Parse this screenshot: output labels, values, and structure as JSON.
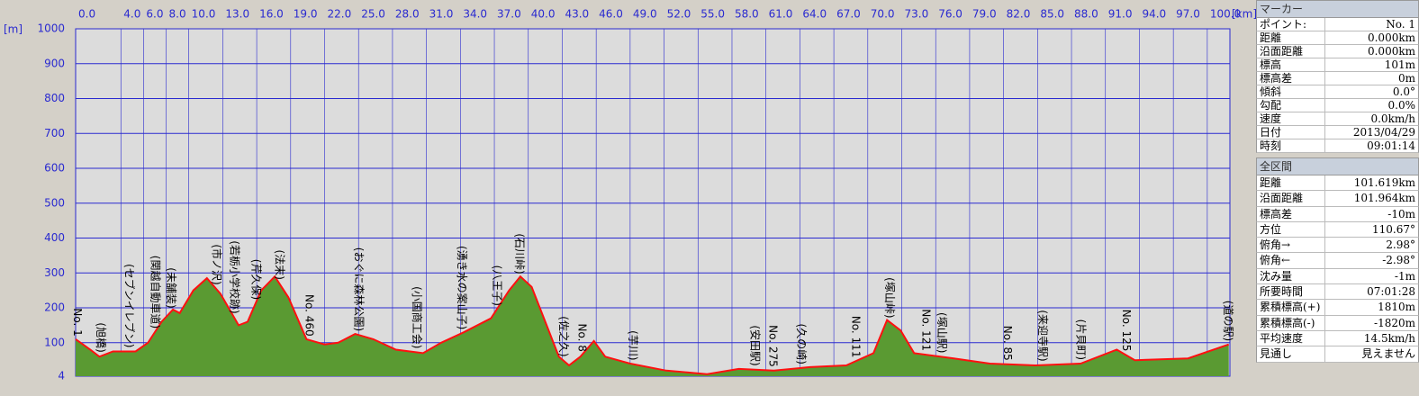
{
  "chart_data": {
    "type": "area",
    "ylabel": "[m]",
    "xlabel": "[km]",
    "xlim": [
      0,
      102
    ],
    "ylim": [
      4,
      1000
    ],
    "yticks": [
      4,
      100,
      200,
      300,
      400,
      500,
      600,
      700,
      800,
      900,
      1000
    ],
    "xticks": [
      {
        "value": 0,
        "label": "0.0"
      },
      {
        "value": 4,
        "label": "4.0"
      },
      {
        "value": 6,
        "label": "6.0"
      },
      {
        "value": 8,
        "label": "8.0"
      },
      {
        "value": 10,
        "label": "10.0"
      },
      {
        "value": 13,
        "label": "13.0"
      },
      {
        "value": 16,
        "label": "16.0"
      },
      {
        "value": 19,
        "label": "19.0"
      },
      {
        "value": 22,
        "label": "22.0"
      },
      {
        "value": 25,
        "label": "25.0"
      },
      {
        "value": 28,
        "label": "28.0"
      },
      {
        "value": 31,
        "label": "31.0"
      },
      {
        "value": 34,
        "label": "34.0"
      },
      {
        "value": 37,
        "label": "37.0"
      },
      {
        "value": 40,
        "label": "40.0"
      },
      {
        "value": 43,
        "label": "43.0"
      },
      {
        "value": 46,
        "label": "46.0"
      },
      {
        "value": 49,
        "label": "49.0"
      },
      {
        "value": 52,
        "label": "52.0"
      },
      {
        "value": 55,
        "label": "55.0"
      },
      {
        "value": 58,
        "label": "58.0"
      },
      {
        "value": 61,
        "label": "61.0"
      },
      {
        "value": 64,
        "label": "64.0"
      },
      {
        "value": 67,
        "label": "67.0"
      },
      {
        "value": 70,
        "label": "70.0"
      },
      {
        "value": 73,
        "label": "73.0"
      },
      {
        "value": 76,
        "label": "76.0"
      },
      {
        "value": 79,
        "label": "79.0"
      },
      {
        "value": 82,
        "label": "82.0"
      },
      {
        "value": 85,
        "label": "85.0"
      },
      {
        "value": 88,
        "label": "88.0"
      },
      {
        "value": 91,
        "label": "91.0"
      },
      {
        "value": 94,
        "label": "94.0"
      },
      {
        "value": 97,
        "label": "97.0"
      },
      {
        "value": 100,
        "label": "100.0"
      }
    ],
    "grid": true,
    "fill_color": "#5a9a32",
    "line_color": "#ff1010",
    "x": [
      0,
      1.3,
      2.1,
      3.3,
      5.3,
      6.4,
      7.6,
      8.6,
      9.2,
      10.4,
      11.6,
      12.8,
      14.4,
      15.2,
      16.4,
      17.6,
      18.8,
      20.4,
      22.0,
      23.2,
      24.7,
      26.3,
      28.3,
      30.7,
      32.3,
      34.3,
      36.7,
      38.3,
      39.3,
      40.3,
      41.5,
      42.7,
      43.6,
      44.6,
      45.8,
      46.8,
      49.0,
      52.2,
      55.8,
      58.6,
      61.7,
      64.9,
      68.1,
      70.5,
      71.7,
      72.9,
      74.1,
      77.6,
      80.8,
      84.8,
      88.8,
      92.0,
      93.6,
      98.3,
      101.9
    ],
    "values": [
      110,
      80,
      60,
      75,
      75,
      100,
      160,
      195,
      185,
      250,
      285,
      240,
      150,
      160,
      250,
      290,
      230,
      110,
      95,
      100,
      125,
      110,
      80,
      70,
      100,
      130,
      170,
      250,
      290,
      260,
      160,
      60,
      35,
      60,
      105,
      60,
      40,
      20,
      10,
      25,
      20,
      30,
      35,
      70,
      165,
      135,
      70,
      55,
      40,
      35,
      40,
      80,
      50,
      55,
      95
    ],
    "annotations": [
      {
        "x": 0.1,
        "text": "No. 1"
      },
      {
        "x": 2.2,
        "text": "(旭橋)"
      },
      {
        "x": 4.7,
        "text": "(セブンイレブン)"
      },
      {
        "x": 7.0,
        "text": "(関越自動車道)"
      },
      {
        "x": 8.4,
        "text": "(未舗装)"
      },
      {
        "x": 12.4,
        "text": "(市ノ沢)"
      },
      {
        "x": 14.0,
        "text": "(若栃小学校跡)"
      },
      {
        "x": 15.9,
        "text": "(芹久保)"
      },
      {
        "x": 18.0,
        "text": "(法末)"
      },
      {
        "x": 20.6,
        "text": "No. 460"
      },
      {
        "x": 25.0,
        "text": "(おぐに森林公園)"
      },
      {
        "x": 30.1,
        "text": "(小国商工会)"
      },
      {
        "x": 34.1,
        "text": "(湧き水の案山子)"
      },
      {
        "x": 37.2,
        "text": "(八王子)"
      },
      {
        "x": 39.2,
        "text": "(石川峠)"
      },
      {
        "x": 43.1,
        "text": "(佐之久)"
      },
      {
        "x": 44.7,
        "text": "No. 8"
      },
      {
        "x": 49.2,
        "text": "(芋川)"
      },
      {
        "x": 60.0,
        "text": "(安田駅)"
      },
      {
        "x": 61.6,
        "text": "No. 275"
      },
      {
        "x": 64.1,
        "text": "(久の崎)"
      },
      {
        "x": 68.9,
        "text": "No. 111"
      },
      {
        "x": 71.9,
        "text": "(塚山峠)"
      },
      {
        "x": 75.1,
        "text": "No. 121"
      },
      {
        "x": 76.5,
        "text": "(塚山駅)"
      },
      {
        "x": 82.3,
        "text": "No. 85"
      },
      {
        "x": 85.4,
        "text": "(来迎寺駅)"
      },
      {
        "x": 88.8,
        "text": "(片貝町)"
      },
      {
        "x": 92.8,
        "text": "No. 125"
      },
      {
        "x": 101.8,
        "text": "(道の駅)"
      }
    ]
  },
  "panel": {
    "marker": {
      "title": "マーカー",
      "rows": [
        [
          "ポイント:",
          "No. 1"
        ],
        [
          "距離",
          "0.000km"
        ],
        [
          "沿面距離",
          "0.000km"
        ],
        [
          "標高",
          "101m"
        ],
        [
          "標高差",
          "0m"
        ],
        [
          "傾斜",
          "0.0°"
        ],
        [
          "勾配",
          "0.0%"
        ],
        [
          "速度",
          "0.0km/h"
        ],
        [
          "日付",
          "2013/04/29"
        ],
        [
          "時刻",
          "09:01:14"
        ]
      ]
    },
    "total": {
      "title": "全区間",
      "rows": [
        [
          "距離",
          "101.619km"
        ],
        [
          "沿面距離",
          "101.964km"
        ],
        [
          "標高差",
          "-10m"
        ],
        [
          "方位",
          "110.67°"
        ],
        [
          "俯角→",
          "2.98°"
        ],
        [
          "俯角←",
          "-2.98°"
        ],
        [
          "沈み量",
          "-1m"
        ],
        [
          "所要時間",
          "07:01:28"
        ],
        [
          "累積標高(+)",
          "1810m"
        ],
        [
          "累積標高(-)",
          "-1820m"
        ],
        [
          "平均速度",
          "14.5km/h"
        ],
        [
          "見通し",
          "見えません"
        ]
      ]
    }
  }
}
